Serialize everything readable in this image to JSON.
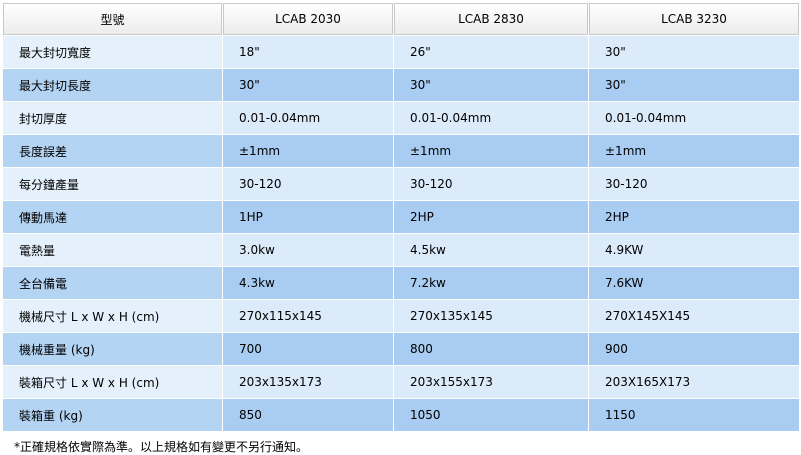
{
  "table": {
    "header": [
      "型號",
      "LCAB 2030",
      "LCAB 2830",
      "LCAB 3230"
    ],
    "rows": [
      [
        "最大封切寬度",
        "18\"",
        "26\"",
        "30\""
      ],
      [
        "最大封切長度",
        "30\"",
        "30\"",
        "30\""
      ],
      [
        "封切厚度",
        "0.01-0.04mm",
        "0.01-0.04mm",
        "0.01-0.04mm"
      ],
      [
        "長度誤差",
        "±1mm",
        "±1mm",
        "±1mm"
      ],
      [
        "每分鐘產量",
        "30-120",
        "30-120",
        "30-120"
      ],
      [
        "傳動馬達",
        "1HP",
        "2HP",
        "2HP"
      ],
      [
        "電熱量",
        "3.0kw",
        "4.5kw",
        "4.9KW"
      ],
      [
        "全台備電",
        "4.3kw",
        "7.2kw",
        "7.6KW"
      ],
      [
        "機械尺寸 L x W x H (cm)",
        "270x115x145",
        "270x135x145",
        "270X145X145"
      ],
      [
        "機械重量 (kg)",
        "700",
        "800",
        "900"
      ],
      [
        "裝箱尺寸 L x W x H (cm)",
        "203x135x173",
        "203x155x173",
        "203X165X173"
      ],
      [
        "裝箱重 (kg)",
        "850",
        "1050",
        "1150"
      ]
    ]
  },
  "footnote": "*正確規格依實際為準。以上規格如有變更不另行通知。"
}
